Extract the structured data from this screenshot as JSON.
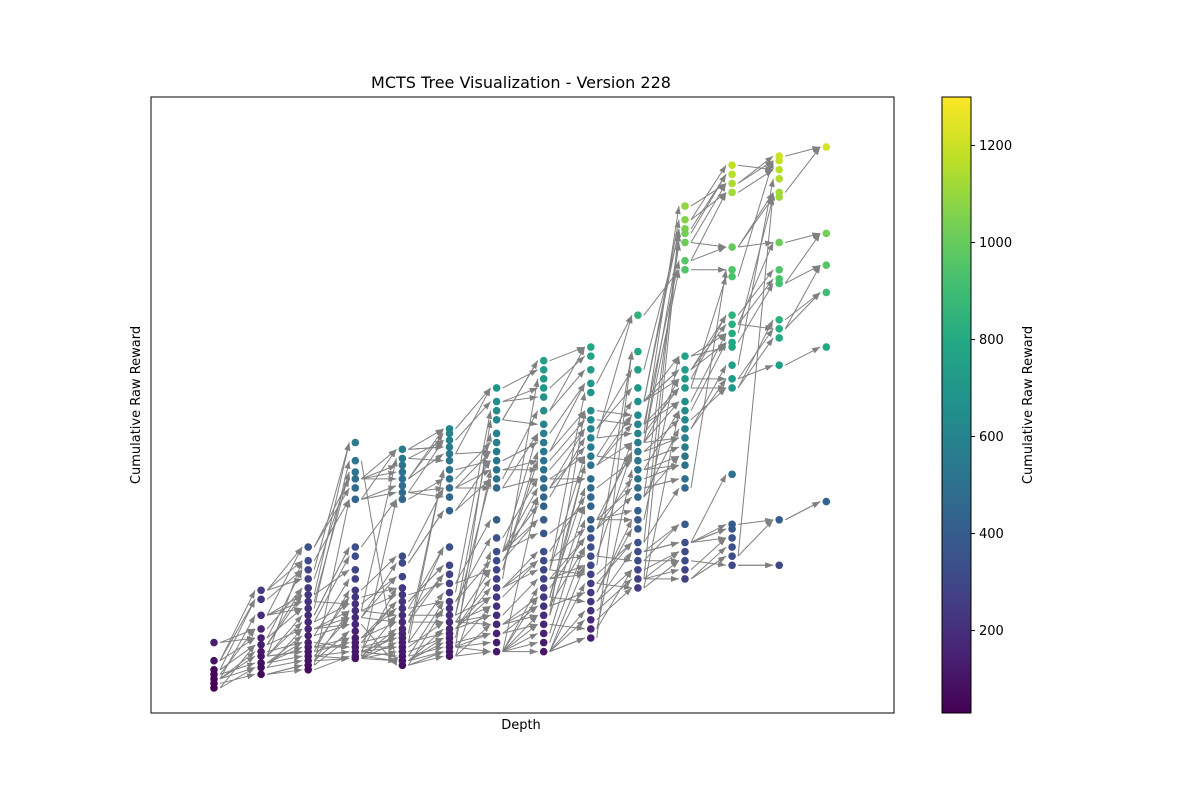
{
  "chart_data": {
    "type": "scatter",
    "title": "MCTS Tree Visualization - Version 228",
    "xlabel": "Depth",
    "ylabel": "Cumulative Raw Reward",
    "colorbar": {
      "label": "Cumulative Raw Reward",
      "range": [
        30,
        1300
      ],
      "ticks": [
        200,
        400,
        600,
        800,
        1000,
        1200
      ],
      "colormap": "viridis"
    },
    "x_ticks_visible": false,
    "y_ticks_visible": false,
    "grid": false,
    "edge_color": "#808080",
    "depths": [
      {
        "depth": 1,
        "rewards": [
          30,
          40,
          50,
          60,
          70,
          90,
          130
        ]
      },
      {
        "depth": 2,
        "rewards": [
          60,
          75,
          85,
          100,
          110,
          125,
          140,
          160,
          190,
          225,
          245
        ]
      },
      {
        "depth": 3,
        "rewards": [
          70,
          80,
          90,
          100,
          110,
          120,
          130,
          145,
          160,
          175,
          190,
          205,
          220,
          235,
          250,
          270,
          290,
          310,
          340
        ]
      },
      {
        "depth": 4,
        "rewards": [
          95,
          100,
          110,
          120,
          130,
          140,
          155,
          170,
          185,
          200,
          215,
          230,
          245,
          270,
          290,
          320,
          340,
          445,
          470,
          490,
          505,
          530,
          570
        ]
      },
      {
        "depth": 5,
        "rewards": [
          80,
          90,
          100,
          110,
          120,
          130,
          140,
          150,
          160,
          175,
          190,
          205,
          220,
          235,
          250,
          275,
          305,
          320,
          445,
          460,
          475,
          490,
          505,
          520,
          535,
          555
        ]
      },
      {
        "depth": 6,
        "rewards": [
          100,
          110,
          120,
          130,
          140,
          150,
          160,
          175,
          190,
          205,
          220,
          240,
          260,
          280,
          300,
          340,
          420,
          450,
          470,
          490,
          510,
          530,
          545,
          560,
          575,
          590,
          600
        ]
      },
      {
        "depth": 7,
        "rewards": [
          110,
          130,
          150,
          170,
          190,
          210,
          230,
          250,
          270,
          290,
          310,
          330,
          360,
          400,
          470,
          490,
          510,
          530,
          550,
          570,
          590,
          620,
          640,
          660,
          690
        ]
      },
      {
        "depth": 8,
        "rewards": [
          110,
          130,
          150,
          170,
          190,
          210,
          230,
          250,
          270,
          290,
          310,
          330,
          370,
          400,
          430,
          450,
          470,
          490,
          510,
          530,
          550,
          570,
          590,
          610,
          640,
          670,
          690,
          710,
          730,
          750
        ]
      },
      {
        "depth": 9,
        "rewards": [
          140,
          160,
          180,
          200,
          220,
          240,
          260,
          280,
          300,
          320,
          340,
          360,
          380,
          400,
          430,
          450,
          470,
          490,
          520,
          540,
          560,
          580,
          600,
          620,
          640,
          680,
          700,
          730,
          760,
          780
        ]
      },
      {
        "depth": 10,
        "rewards": [
          250,
          270,
          290,
          310,
          330,
          350,
          380,
          400,
          420,
          450,
          470,
          490,
          510,
          530,
          550,
          570,
          590,
          610,
          630,
          660,
          690,
          730,
          770,
          850
        ]
      },
      {
        "depth": 11,
        "rewards": [
          270,
          290,
          310,
          330,
          350,
          390,
          470,
          490,
          520,
          540,
          560,
          580,
          600,
          620,
          640,
          660,
          690,
          710,
          730,
          760,
          950,
          970,
          1010,
          1030,
          1040,
          1060,
          1090
        ]
      },
      {
        "depth": 12,
        "rewards": [
          300,
          320,
          340,
          360,
          380,
          390,
          500,
          690,
          710,
          740,
          780,
          790,
          810,
          830,
          850,
          935,
          950,
          1000,
          1120,
          1140,
          1160,
          1180
        ]
      },
      {
        "depth": 13,
        "rewards": [
          300,
          400,
          740,
          800,
          820,
          840,
          920,
          930,
          950,
          1010,
          1110,
          1120,
          1150,
          1170,
          1190,
          1200
        ]
      },
      {
        "depth": 14,
        "rewards": [
          440,
          780,
          900,
          960,
          1030,
          1220
        ]
      }
    ]
  }
}
